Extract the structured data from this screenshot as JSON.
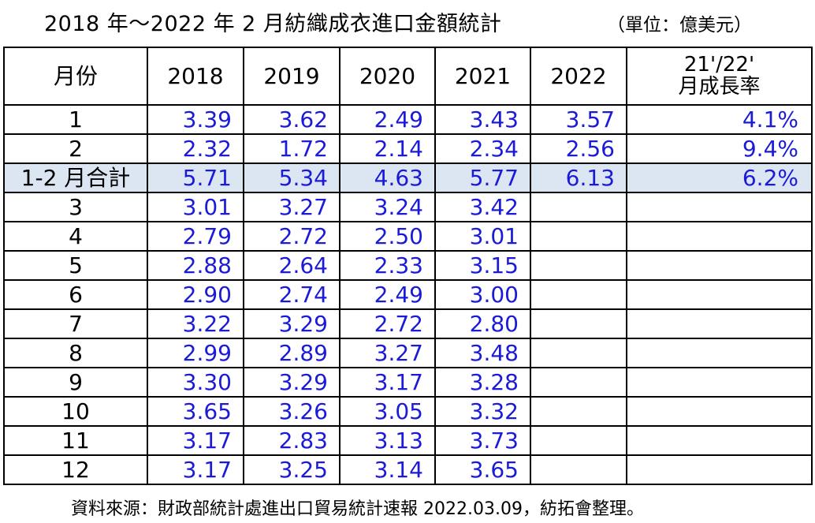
{
  "title": "2018 年～2022 年 2 月紡織成衣進口金額統計",
  "unit": "（單位：億美元）",
  "table": {
    "headers": [
      "月份",
      "2018",
      "2019",
      "2020",
      "2021",
      "2022"
    ],
    "rate_header_line1": "21'/22'",
    "rate_header_line2": "月成長率",
    "rows": [
      {
        "label": "1",
        "values": [
          "3.39",
          "3.62",
          "2.49",
          "3.43",
          "3.57"
        ],
        "rate": "4.1%"
      },
      {
        "label": "2",
        "values": [
          "2.32",
          "1.72",
          "2.14",
          "2.34",
          "2.56"
        ],
        "rate": "9.4%"
      },
      {
        "label": "1-2 月合計",
        "values": [
          "5.71",
          "5.34",
          "4.63",
          "5.77",
          "6.13"
        ],
        "rate": "6.2%",
        "highlight": true
      },
      {
        "label": "3",
        "values": [
          "3.01",
          "3.27",
          "3.24",
          "3.42",
          ""
        ],
        "rate": ""
      },
      {
        "label": "4",
        "values": [
          "2.79",
          "2.72",
          "2.50",
          "3.01",
          ""
        ],
        "rate": ""
      },
      {
        "label": "5",
        "values": [
          "2.88",
          "2.64",
          "2.33",
          "3.15",
          ""
        ],
        "rate": ""
      },
      {
        "label": "6",
        "values": [
          "2.90",
          "2.74",
          "2.49",
          "3.00",
          ""
        ],
        "rate": ""
      },
      {
        "label": "7",
        "values": [
          "3.22",
          "3.29",
          "2.72",
          "2.80",
          ""
        ],
        "rate": ""
      },
      {
        "label": "8",
        "values": [
          "2.99",
          "2.89",
          "3.27",
          "3.48",
          ""
        ],
        "rate": ""
      },
      {
        "label": "9",
        "values": [
          "3.30",
          "3.29",
          "3.17",
          "3.28",
          ""
        ],
        "rate": ""
      },
      {
        "label": "10",
        "values": [
          "3.65",
          "3.26",
          "3.05",
          "3.32",
          ""
        ],
        "rate": ""
      },
      {
        "label": "11",
        "values": [
          "3.17",
          "2.83",
          "3.13",
          "3.73",
          ""
        ],
        "rate": ""
      },
      {
        "label": "12",
        "values": [
          "3.17",
          "3.25",
          "3.14",
          "3.65",
          ""
        ],
        "rate": ""
      }
    ]
  },
  "source": "資料來源：財政部統計處進出口貿易統計速報 2022.03.09，紡拓會整理。",
  "colors": {
    "value_text": "#1a1ad8",
    "highlight_row": "#dce6f2"
  }
}
